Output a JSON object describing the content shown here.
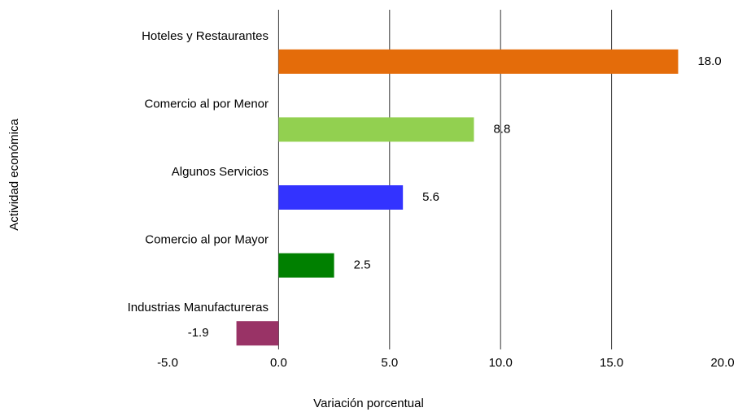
{
  "chart_data": {
    "type": "bar",
    "orientation": "horizontal",
    "categories": [
      "Hoteles y Restaurantes",
      "Comercio al por Menor",
      "Algunos Servicios",
      "Comercio al por Mayor",
      "Industrias Manufactureras"
    ],
    "values": [
      18.0,
      8.8,
      5.6,
      2.5,
      -1.9
    ],
    "value_labels": [
      "18.0",
      "8.8",
      "5.6",
      "2.5",
      "-1.9"
    ],
    "colors": [
      "#e46c0a",
      "#92d050",
      "#3333ff",
      "#008000",
      "#993366"
    ],
    "xlim": [
      -5,
      20
    ],
    "xticks": [
      {
        "value": -5,
        "label": "-5.0"
      },
      {
        "value": 0,
        "label": "0.0"
      },
      {
        "value": 5,
        "label": "5.0"
      },
      {
        "value": 10,
        "label": "10.0"
      },
      {
        "value": 15,
        "label": "15.0"
      },
      {
        "value": 20,
        "label": "20.0"
      }
    ],
    "xlabel": "Variación porcentual",
    "ylabel": "Actividad económica",
    "grid": true
  }
}
